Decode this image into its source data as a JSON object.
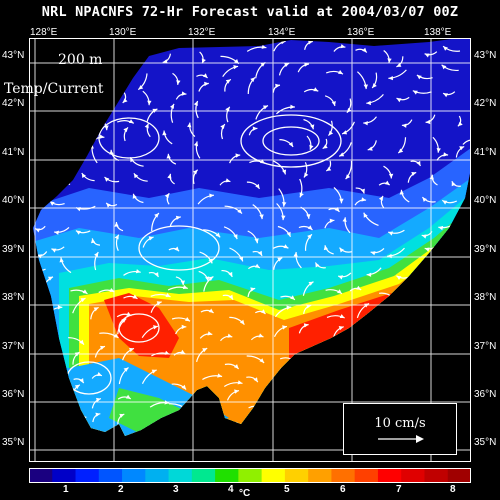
{
  "title": "NRL NPACNFS 72-Hr Forecast valid at 2004/03/07 00Z",
  "depth_label": "200 m",
  "field_label": "Temp/Current",
  "reference_vector": {
    "label": "10 cm/s"
  },
  "colorbar": {
    "unit": "°C",
    "ticks": [
      "1",
      "2",
      "3",
      "4",
      "5",
      "6",
      "7",
      "8"
    ],
    "colors": [
      "#1a0080",
      "#0000c8",
      "#0020ff",
      "#0055ff",
      "#0088ff",
      "#00b0f0",
      "#00d8d8",
      "#00e890",
      "#20e000",
      "#90f000",
      "#ffff00",
      "#ffd000",
      "#ffa000",
      "#ff7000",
      "#ff4000",
      "#ff0000",
      "#e00000",
      "#c00000",
      "#a00000"
    ]
  },
  "map": {
    "lon_labels": [
      "128°E",
      "130°E",
      "132°E",
      "134°E",
      "136°E",
      "138°E"
    ],
    "lat_labels": [
      "43°N",
      "42°N",
      "41°N",
      "40°N",
      "39°N",
      "38°N",
      "37°N",
      "36°N",
      "35°N"
    ],
    "colors": {
      "deep_blue": "#1414c8",
      "mid_blue": "#2864ff",
      "light_blue": "#14aaff",
      "cyan": "#00e0e0",
      "green": "#40e040",
      "yellow": "#ffff00",
      "orange": "#ff9000",
      "red": "#ff2000",
      "dark_red": "#c80000"
    }
  }
}
